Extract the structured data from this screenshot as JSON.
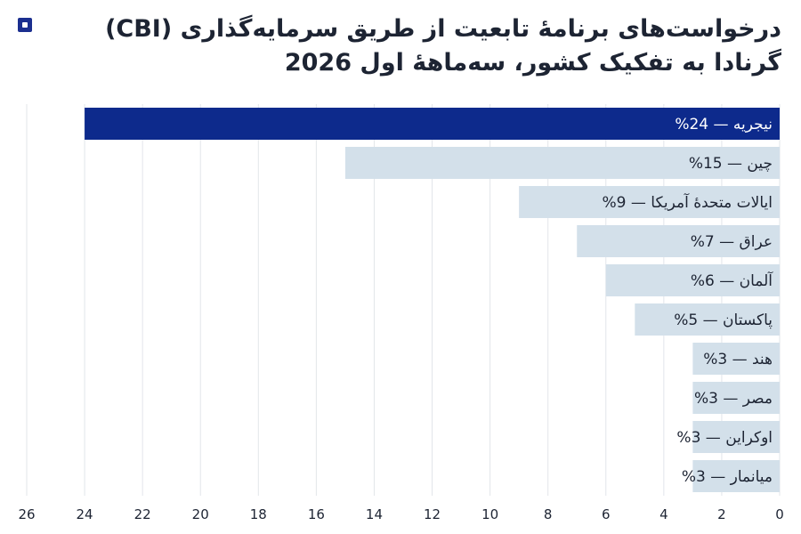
{
  "header": {
    "title_line1": "درخواست‌های برنامهٔ تابعیت از طریق سرمایه‌گذاری (CBI)",
    "title_line2": "گرنادا به تفکیک کشور، سه‌ماههٔ اول 2026"
  },
  "colors": {
    "highlight_bar": "#0d2a8c",
    "bar": "#d3e0ea",
    "grid": "#e2e6ea",
    "highlight_text": "#ffffff",
    "text": "#1d2433",
    "brand": "#1b2f8f"
  },
  "chart_data": {
    "type": "bar",
    "orientation": "horizontal",
    "x_direction": "right-to-left",
    "title": "درخواست‌های برنامهٔ تابعیت از طریق سرمایه‌گذاری (CBI) گرنادا به تفکیک کشور، سه‌ماههٔ اول 2026",
    "categories": [
      "نیجریه",
      "چین",
      "ایالات متحدهٔ آمریکا",
      "عراق",
      "آلمان",
      "پاکستان",
      "هند",
      "مصر",
      "اوکراین",
      "میانمار"
    ],
    "values": [
      24,
      15,
      9,
      7,
      6,
      5,
      3,
      3,
      3,
      3
    ],
    "bar_labels": [
      "نیجریه — 24%",
      "چین — 15%",
      "ایالات متحدهٔ آمریکا — 9%",
      "عراق — 7%",
      "آلمان — 6%",
      "پاکستان — 5%",
      "هند — 3%",
      "مصر — 3%",
      "اوکراین — 3%",
      "میانمار — 3%"
    ],
    "highlighted_index": 0,
    "xlim": [
      0,
      26
    ],
    "x_ticks": [
      "0",
      "2",
      "4",
      "6",
      "8",
      "10",
      "12",
      "14",
      "16",
      "18",
      "20",
      "22",
      "24",
      "26"
    ],
    "grid": true,
    "legend": "none"
  }
}
